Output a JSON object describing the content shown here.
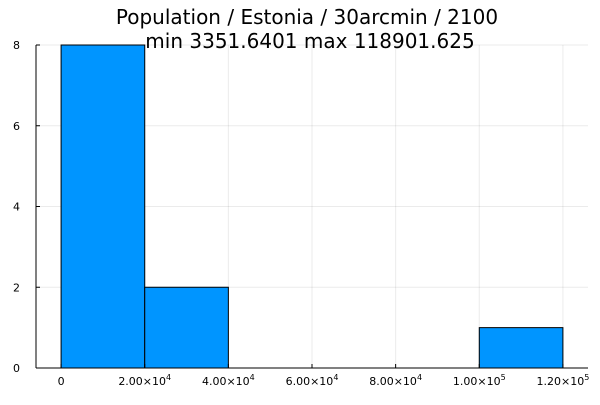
{
  "chart_data": {
    "type": "bar",
    "title": "Population / Estonia / 30arcmin / 2100",
    "subtitle": "min 3351.6401  max 118901.625",
    "xlabel": "",
    "ylabel": "",
    "xlim": [
      -6000,
      126000
    ],
    "ylim": [
      0,
      8
    ],
    "grid": true,
    "legend": "none",
    "bar_color": "#0095FF",
    "bins": [
      {
        "x0": 0,
        "x1": 20000,
        "count": 8
      },
      {
        "x0": 20000,
        "x1": 40000,
        "count": 2
      },
      {
        "x0": 40000,
        "x1": 60000,
        "count": 0
      },
      {
        "x0": 60000,
        "x1": 80000,
        "count": 0
      },
      {
        "x0": 80000,
        "x1": 100000,
        "count": 0
      },
      {
        "x0": 100000,
        "x1": 120000,
        "count": 1
      }
    ],
    "x_ticks": [
      {
        "value": 0,
        "mantissa": "0",
        "exp": ""
      },
      {
        "value": 20000,
        "mantissa": "2.00×10",
        "exp": "4"
      },
      {
        "value": 40000,
        "mantissa": "4.00×10",
        "exp": "4"
      },
      {
        "value": 60000,
        "mantissa": "6.00×10",
        "exp": "4"
      },
      {
        "value": 80000,
        "mantissa": "8.00×10",
        "exp": "4"
      },
      {
        "value": 100000,
        "mantissa": "1.00×10",
        "exp": "5"
      },
      {
        "value": 120000,
        "mantissa": "1.20×10",
        "exp": "5"
      }
    ],
    "y_ticks": [
      {
        "value": 0,
        "label": "0"
      },
      {
        "value": 2,
        "label": "2"
      },
      {
        "value": 4,
        "label": "4"
      },
      {
        "value": 6,
        "label": "6"
      },
      {
        "value": 8,
        "label": "8"
      }
    ]
  }
}
